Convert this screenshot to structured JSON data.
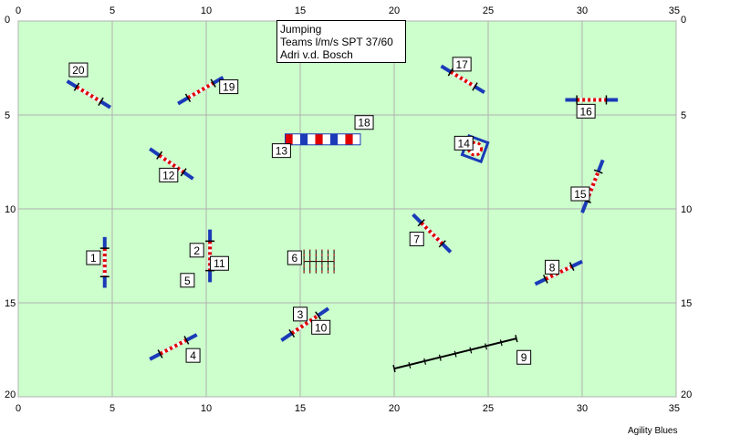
{
  "header": {
    "event": "Jumping",
    "class": "Teams l/m/s SPT 37/60",
    "judge": "Adri v.d. Bosch"
  },
  "footer": {
    "brand": "Agility Blues"
  },
  "field": {
    "width_m": 35,
    "height_m": 20,
    "x_ticks": [
      0,
      5,
      10,
      15,
      20,
      25,
      30,
      35
    ],
    "y_ticks": [
      0,
      5,
      10,
      15,
      20
    ],
    "grid": true,
    "background": "#ccffcc",
    "grid_color": "#b0b0b0"
  },
  "colors": {
    "pole": "#1a3ab8",
    "jump_red": "#e00000",
    "jump_white": "#ffffff",
    "tunnel": "#000000"
  },
  "obstacles": [
    {
      "type": "jump",
      "x1": 4.6,
      "y1": 11.5,
      "x2": 4.6,
      "y2": 14.2
    },
    {
      "type": "jump",
      "x1": 10.2,
      "y1": 11.1,
      "x2": 10.2,
      "y2": 13.9
    },
    {
      "type": "jump",
      "x1": 14.0,
      "y1": 17.0,
      "x2": 16.5,
      "y2": 15.3
    },
    {
      "type": "jump",
      "x1": 7.0,
      "y1": 18.0,
      "x2": 9.5,
      "y2": 16.7
    },
    {
      "type": "weave",
      "x1": 15.2,
      "y1": 12.8,
      "x2": 16.8,
      "y2": 12.8
    },
    {
      "type": "jump",
      "x1": 21.0,
      "y1": 10.3,
      "x2": 23.0,
      "y2": 12.3
    },
    {
      "type": "jump",
      "x1": 27.5,
      "y1": 14.0,
      "x2": 30.0,
      "y2": 12.8
    },
    {
      "type": "tunnel",
      "x1": 20.0,
      "y1": 18.5,
      "x2": 26.5,
      "y2": 16.9
    },
    {
      "type": "jump",
      "x1": 7.0,
      "y1": 6.8,
      "x2": 9.3,
      "y2": 8.4
    },
    {
      "type": "wall",
      "x1": 14.2,
      "y1": 6.3,
      "x2": 18.2,
      "y2": 6.3
    },
    {
      "type": "tyre",
      "x": 24.3,
      "y": 6.8
    },
    {
      "type": "jump",
      "x1": 30.0,
      "y1": 10.2,
      "x2": 31.1,
      "y2": 7.4
    },
    {
      "type": "jump",
      "x1": 29.1,
      "y1": 4.2,
      "x2": 31.9,
      "y2": 4.2
    },
    {
      "type": "jump",
      "x1": 22.5,
      "y1": 2.4,
      "x2": 24.8,
      "y2": 3.8
    },
    {
      "type": "jump",
      "x1": 8.5,
      "y1": 4.4,
      "x2": 10.9,
      "y2": 3.0
    },
    {
      "type": "jump",
      "x1": 2.6,
      "y1": 3.2,
      "x2": 4.9,
      "y2": 4.6
    }
  ],
  "labels": [
    {
      "text": "1",
      "x": 4.0,
      "y": 12.6
    },
    {
      "text": "2",
      "x": 9.5,
      "y": 12.2
    },
    {
      "text": "11",
      "x": 10.7,
      "y": 12.9
    },
    {
      "text": "5",
      "x": 9.0,
      "y": 13.8
    },
    {
      "text": "3",
      "x": 15.0,
      "y": 15.6
    },
    {
      "text": "10",
      "x": 16.1,
      "y": 16.3
    },
    {
      "text": "4",
      "x": 9.3,
      "y": 17.8
    },
    {
      "text": "6",
      "x": 14.7,
      "y": 12.6
    },
    {
      "text": "7",
      "x": 21.2,
      "y": 11.6
    },
    {
      "text": "8",
      "x": 28.4,
      "y": 13.1
    },
    {
      "text": "9",
      "x": 26.9,
      "y": 17.9
    },
    {
      "text": "12",
      "x": 8.0,
      "y": 8.2
    },
    {
      "text": "13",
      "x": 14.0,
      "y": 6.9
    },
    {
      "text": "18",
      "x": 18.4,
      "y": 5.4
    },
    {
      "text": "14",
      "x": 23.7,
      "y": 6.5
    },
    {
      "text": "15",
      "x": 29.9,
      "y": 9.2
    },
    {
      "text": "16",
      "x": 30.2,
      "y": 4.8
    },
    {
      "text": "17",
      "x": 23.6,
      "y": 2.3
    },
    {
      "text": "19",
      "x": 11.2,
      "y": 3.5
    },
    {
      "text": "20",
      "x": 3.2,
      "y": 2.6
    }
  ]
}
